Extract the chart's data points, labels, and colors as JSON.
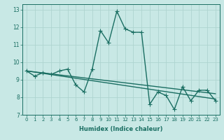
{
  "xlabel": "Humidex (Indice chaleur)",
  "ylabel": "",
  "xlim": [
    -0.5,
    23.5
  ],
  "ylim": [
    7,
    13.3
  ],
  "yticks": [
    7,
    8,
    9,
    10,
    11,
    12,
    13
  ],
  "xticks": [
    0,
    1,
    2,
    3,
    4,
    5,
    6,
    7,
    8,
    9,
    10,
    11,
    12,
    13,
    14,
    15,
    16,
    17,
    18,
    19,
    20,
    21,
    22,
    23
  ],
  "background_color": "#c8e8e5",
  "grid_color": "#aed4d0",
  "line_color": "#1a6e62",
  "line1_x": [
    0,
    1,
    2,
    3,
    4,
    5,
    6,
    7,
    8,
    9,
    10,
    11,
    12,
    13,
    14,
    15,
    16,
    17,
    18,
    19,
    20,
    21,
    22,
    23
  ],
  "line1_y": [
    9.5,
    9.2,
    9.4,
    9.3,
    9.5,
    9.6,
    8.7,
    8.3,
    9.6,
    11.8,
    11.1,
    12.9,
    11.9,
    11.7,
    11.7,
    7.6,
    8.3,
    8.1,
    7.3,
    8.6,
    7.8,
    8.4,
    8.4,
    7.8
  ],
  "line2_x": [
    0,
    23
  ],
  "line2_y": [
    9.5,
    7.9
  ],
  "line3_x": [
    0,
    23
  ],
  "line3_y": [
    9.5,
    8.2
  ],
  "marker": "+",
  "markersize": 4,
  "linewidth": 1.0
}
